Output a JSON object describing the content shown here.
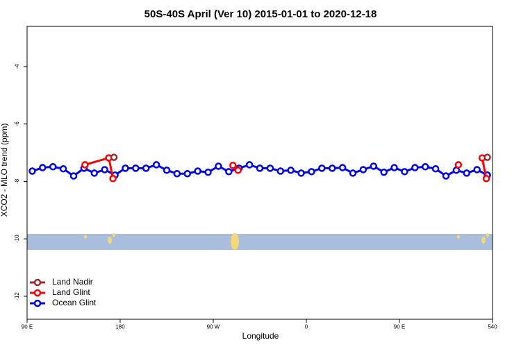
{
  "chart_data": {
    "type": "line",
    "title": "50S-40S April (Ver 10)   2015-01-01 to 2020-12-18",
    "x_label": "Longitude",
    "y_label": "XCO2 - MLO trend (ppm)",
    "xlim": [
      90,
      540
    ],
    "ylim": [
      -12.8,
      -2.6
    ],
    "xticks": [
      {
        "value": 90,
        "label": "90 E"
      },
      180,
      {
        "value": 270,
        "label": "90 W"
      },
      {
        "value": 360,
        "label": "0"
      },
      {
        "value": 450,
        "label": "90 E"
      },
      540
    ],
    "yticks": [
      -12,
      -10,
      -8,
      -6,
      -4
    ],
    "legend": "bottom-left",
    "series": [
      {
        "name": "Land Nadir",
        "color": "#a0282a",
        "x": [
          174,
          null,
          535
        ],
        "values": [
          -7.16,
          null,
          -7.16
        ]
      },
      {
        "name": "Land Glint",
        "color": "#ff0000",
        "x": [
          146,
          169,
          173,
          null,
          289,
          294,
          null,
          507,
          null,
          530,
          534
        ],
        "values": [
          -7.42,
          -7.18,
          -7.9,
          null,
          -7.44,
          -7.61,
          null,
          -7.42,
          null,
          -7.18,
          -7.9
        ]
      },
      {
        "name": "Ocean Glint",
        "color": "#0000ee",
        "x": [
          95,
          105,
          115,
          125,
          135,
          145,
          155,
          165,
          175,
          185,
          195,
          205,
          215,
          225,
          235,
          245,
          255,
          265,
          275,
          285,
          295,
          305,
          315,
          325,
          335,
          345,
          355,
          365,
          375,
          385,
          395,
          405,
          415,
          425,
          435,
          445,
          455,
          465,
          475,
          485,
          495,
          505,
          515,
          525,
          535
        ],
        "values": [
          -7.64,
          -7.52,
          -7.49,
          -7.56,
          -7.81,
          -7.54,
          -7.71,
          -7.59,
          -7.78,
          -7.54,
          -7.54,
          -7.54,
          -7.42,
          -7.61,
          -7.73,
          -7.73,
          -7.64,
          -7.68,
          -7.47,
          -7.66,
          -7.54,
          -7.42,
          -7.54,
          -7.54,
          -7.64,
          -7.61,
          -7.71,
          -7.66,
          -7.54,
          -7.54,
          -7.52,
          -7.71,
          -7.59,
          -7.47,
          -7.68,
          -7.52,
          -7.66,
          -7.52,
          -7.49,
          -7.56,
          -7.81,
          -7.61,
          -7.71,
          -7.59,
          -7.78
        ]
      }
    ]
  }
}
